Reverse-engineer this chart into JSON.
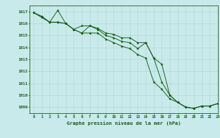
{
  "title": "Graphe pression niveau de la mer (hPa)",
  "xlim": [
    -0.5,
    23
  ],
  "ylim": [
    1008.5,
    1017.5
  ],
  "yticks": [
    1009,
    1010,
    1011,
    1012,
    1013,
    1014,
    1015,
    1016,
    1017
  ],
  "xticks": [
    0,
    1,
    2,
    3,
    4,
    5,
    6,
    7,
    8,
    9,
    10,
    11,
    12,
    13,
    14,
    15,
    16,
    17,
    18,
    19,
    20,
    21,
    22,
    23
  ],
  "bg_color": "#c8eaea",
  "grid_color": "#b0d4d4",
  "line_color": "#1a5c1a",
  "series1": [
    1016.9,
    1016.5,
    1016.1,
    1017.1,
    1016.0,
    1015.5,
    1015.2,
    1015.8,
    1015.6,
    1015.2,
    1015.1,
    1014.8,
    1014.8,
    1014.4,
    1014.4,
    1013.1,
    1011.1,
    1010.0,
    1009.4,
    1009.0,
    1008.9,
    1009.1,
    1009.1,
    1009.3
  ],
  "series2": [
    1016.9,
    1016.6,
    1016.1,
    1016.1,
    1016.0,
    1015.5,
    1015.8,
    1015.8,
    1015.5,
    1015.0,
    1014.8,
    1014.5,
    1014.4,
    1013.9,
    1014.4,
    1013.1,
    1012.6,
    1010.0,
    1009.4,
    1009.0,
    1008.9,
    1009.1,
    1009.1,
    1009.3
  ],
  "series3": [
    1016.9,
    1016.6,
    1016.1,
    1016.1,
    1016.0,
    1015.5,
    1015.2,
    1015.2,
    1015.2,
    1014.7,
    1014.4,
    1014.1,
    1013.9,
    1013.4,
    1013.1,
    1011.1,
    1010.5,
    1009.7,
    1009.4,
    1009.0,
    1008.9,
    1009.1,
    1009.1,
    1009.3
  ],
  "figsize": [
    3.2,
    2.0
  ],
  "dpi": 100
}
